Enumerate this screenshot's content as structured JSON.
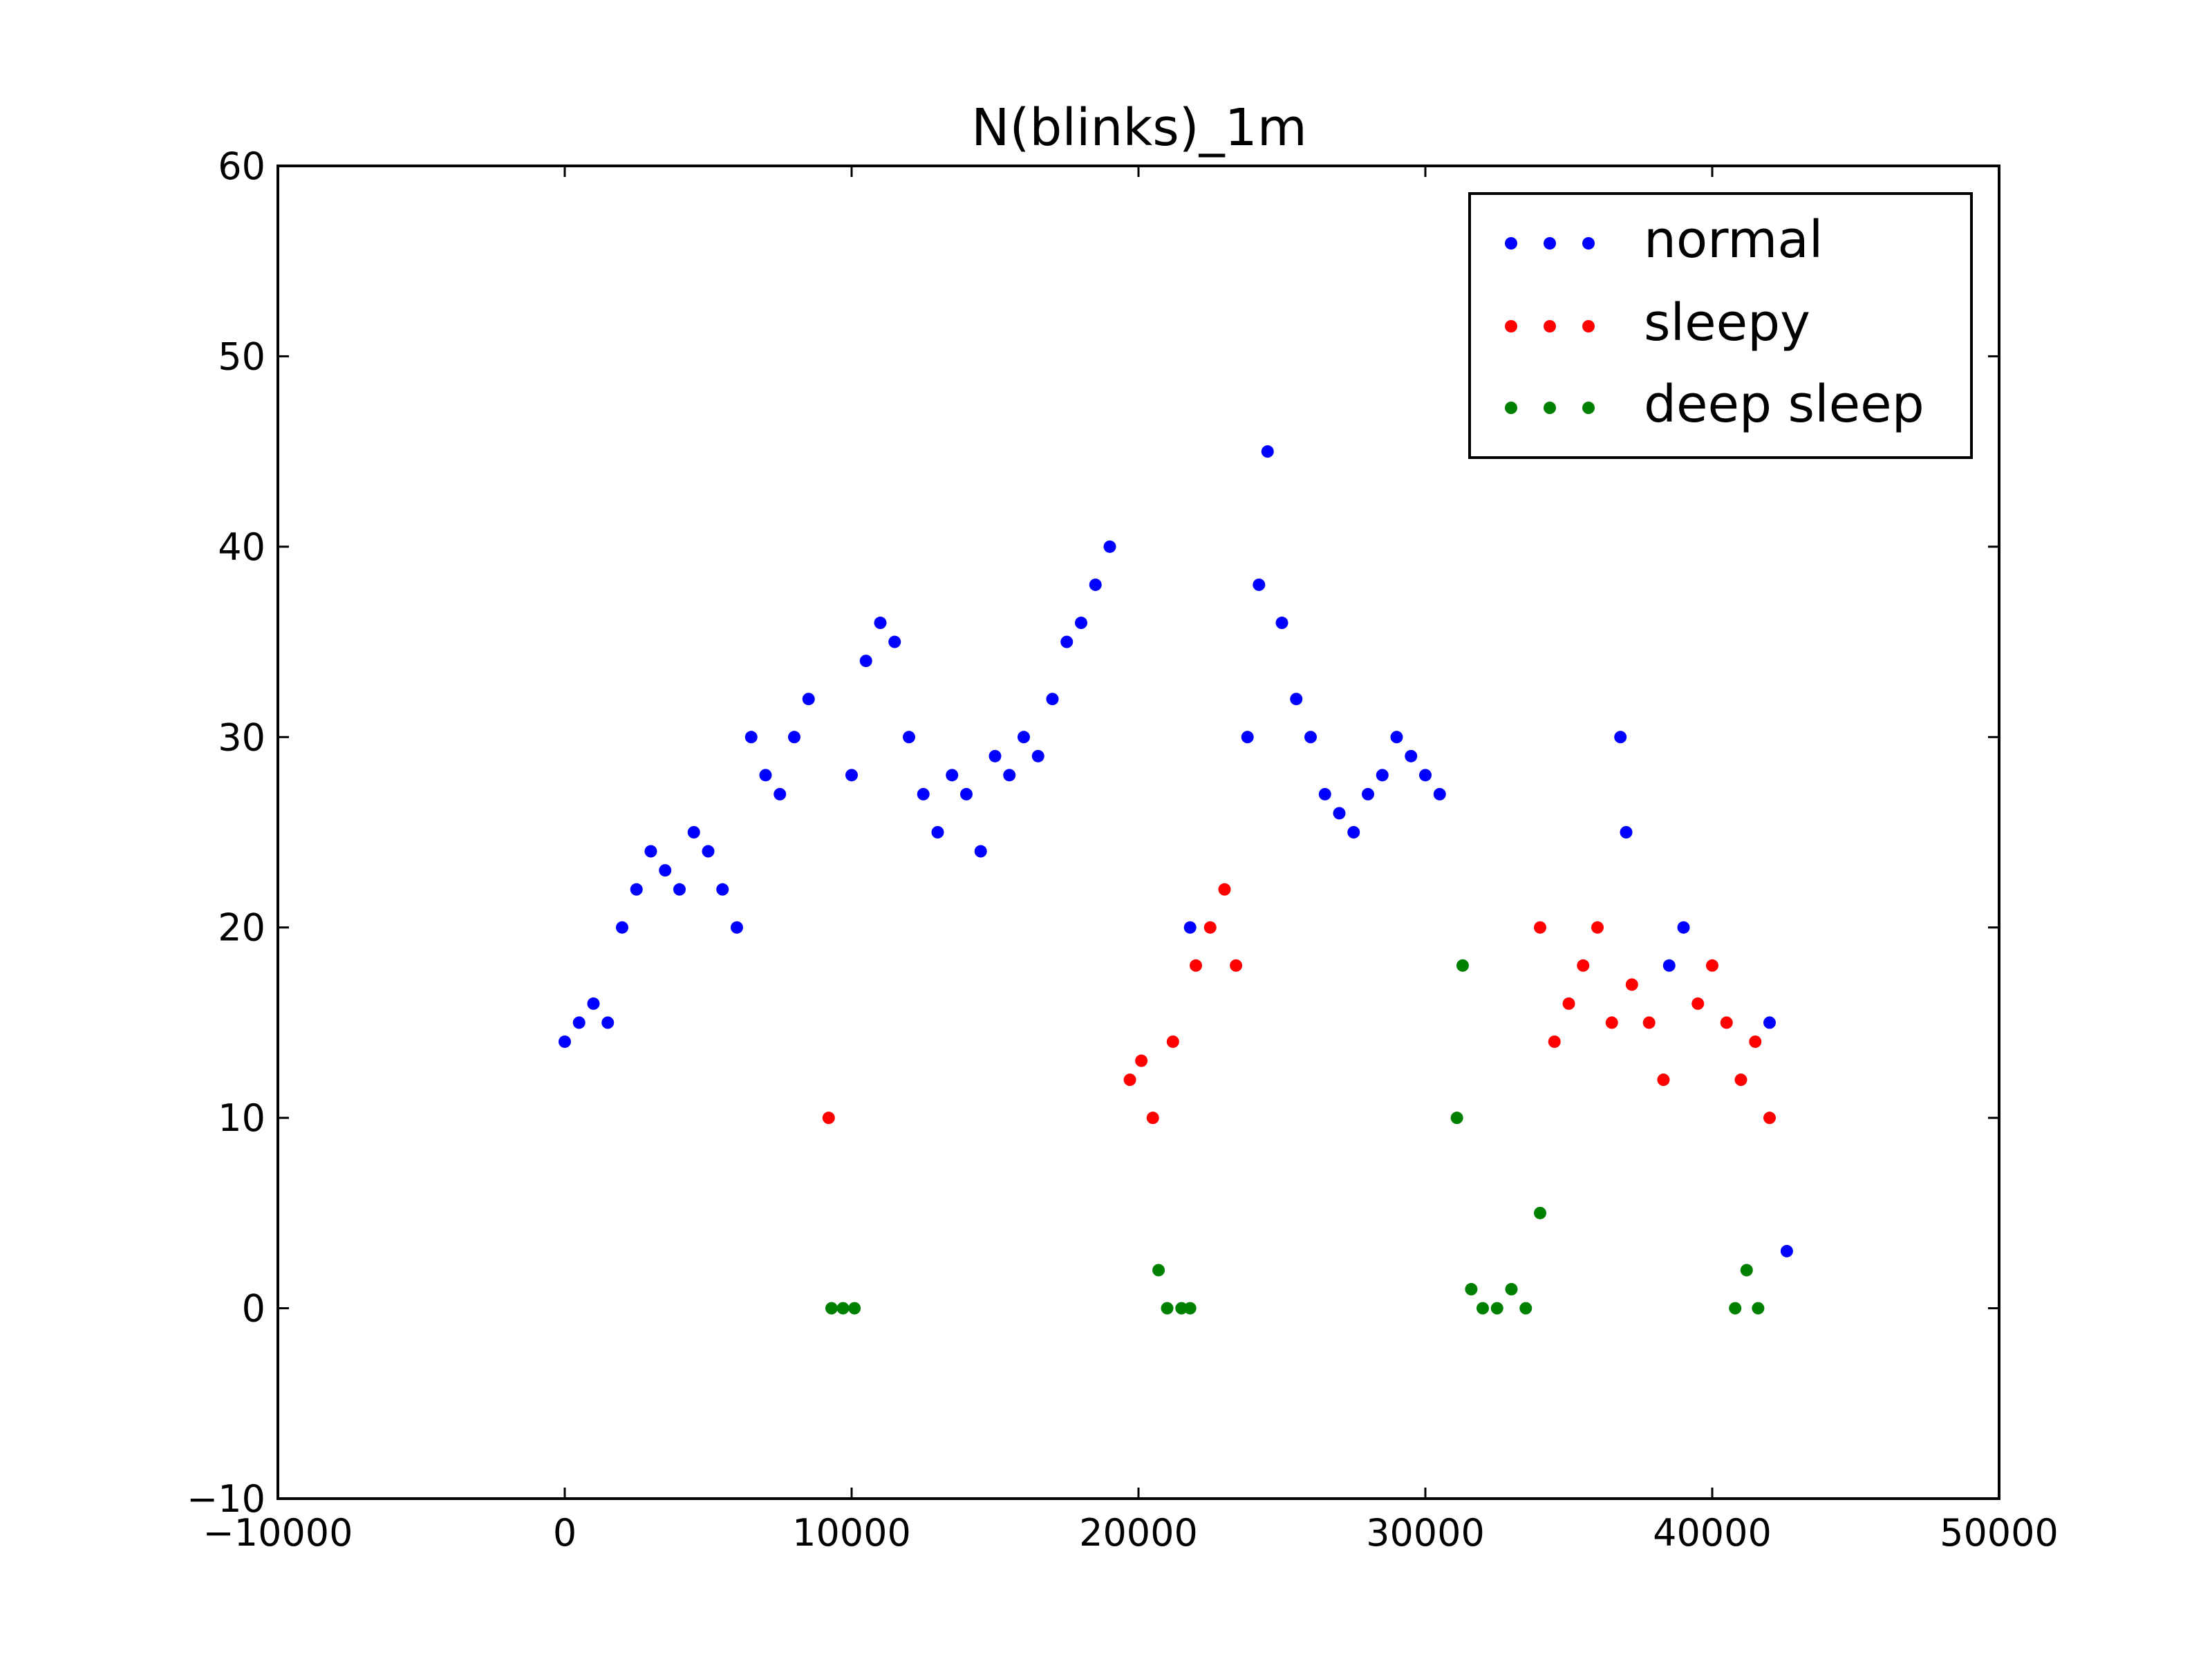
{
  "chart_data": {
    "type": "scatter",
    "title": "N(blinks)_1m",
    "xlabel": "",
    "ylabel": "",
    "xlim": [
      -10000,
      50000
    ],
    "ylim": [
      -10,
      60
    ],
    "xticks": [
      -10000,
      0,
      10000,
      20000,
      30000,
      40000,
      50000
    ],
    "xtick_labels": [
      "−10000",
      "0",
      "10000",
      "20000",
      "30000",
      "40000",
      "50000"
    ],
    "yticks": [
      -10,
      0,
      10,
      20,
      30,
      40,
      50,
      60
    ],
    "ytick_labels": [
      "−10",
      "0",
      "10",
      "20",
      "30",
      "40",
      "50",
      "60"
    ],
    "grid": false,
    "legend_position": "top-right",
    "series": [
      {
        "name": "normal",
        "color": "#0000ff",
        "points": [
          [
            0,
            14
          ],
          [
            500,
            15
          ],
          [
            1000,
            16
          ],
          [
            1500,
            15
          ],
          [
            2000,
            20
          ],
          [
            2500,
            22
          ],
          [
            3000,
            24
          ],
          [
            3500,
            23
          ],
          [
            4000,
            22
          ],
          [
            4500,
            25
          ],
          [
            5000,
            24
          ],
          [
            5500,
            22
          ],
          [
            6000,
            20
          ],
          [
            6500,
            30
          ],
          [
            7000,
            28
          ],
          [
            7500,
            27
          ],
          [
            8000,
            30
          ],
          [
            8500,
            32
          ],
          [
            10000,
            28
          ],
          [
            10500,
            34
          ],
          [
            11000,
            36
          ],
          [
            11500,
            35
          ],
          [
            12000,
            30
          ],
          [
            12500,
            27
          ],
          [
            13000,
            25
          ],
          [
            13500,
            28
          ],
          [
            14000,
            27
          ],
          [
            14500,
            24
          ],
          [
            15000,
            29
          ],
          [
            15500,
            28
          ],
          [
            16000,
            30
          ],
          [
            16500,
            29
          ],
          [
            17000,
            32
          ],
          [
            17500,
            35
          ],
          [
            18000,
            36
          ],
          [
            18500,
            38
          ],
          [
            19000,
            40
          ],
          [
            21800,
            20
          ],
          [
            23800,
            30
          ],
          [
            24200,
            38
          ],
          [
            24500,
            45
          ],
          [
            25000,
            36
          ],
          [
            25500,
            32
          ],
          [
            26000,
            30
          ],
          [
            26500,
            27
          ],
          [
            27000,
            26
          ],
          [
            27500,
            25
          ],
          [
            28000,
            27
          ],
          [
            28500,
            28
          ],
          [
            29000,
            30
          ],
          [
            29500,
            29
          ],
          [
            30000,
            28
          ],
          [
            30500,
            27
          ],
          [
            36800,
            30
          ],
          [
            37000,
            25
          ],
          [
            38500,
            18
          ],
          [
            39000,
            20
          ],
          [
            42000,
            15
          ],
          [
            42600,
            3
          ]
        ]
      },
      {
        "name": "sleepy",
        "color": "#ff0000",
        "points": [
          [
            9200,
            10
          ],
          [
            19700,
            12
          ],
          [
            20100,
            13
          ],
          [
            20500,
            10
          ],
          [
            21200,
            14
          ],
          [
            22000,
            18
          ],
          [
            22500,
            20
          ],
          [
            23000,
            22
          ],
          [
            23400,
            18
          ],
          [
            34000,
            20
          ],
          [
            34500,
            14
          ],
          [
            35000,
            16
          ],
          [
            35500,
            18
          ],
          [
            36000,
            20
          ],
          [
            36500,
            15
          ],
          [
            37200,
            17
          ],
          [
            37800,
            15
          ],
          [
            38300,
            12
          ],
          [
            39500,
            16
          ],
          [
            40000,
            18
          ],
          [
            40500,
            15
          ],
          [
            41000,
            12
          ],
          [
            41500,
            14
          ],
          [
            42000,
            10
          ]
        ]
      },
      {
        "name": "deep sleep",
        "color": "#008000",
        "points": [
          [
            9300,
            0
          ],
          [
            9700,
            0
          ],
          [
            10100,
            0
          ],
          [
            20700,
            2
          ],
          [
            21000,
            0
          ],
          [
            21500,
            0
          ],
          [
            21800,
            0
          ],
          [
            31100,
            10
          ],
          [
            31300,
            18
          ],
          [
            31600,
            1
          ],
          [
            32000,
            0
          ],
          [
            32500,
            0
          ],
          [
            33000,
            1
          ],
          [
            33500,
            0
          ],
          [
            34000,
            5
          ],
          [
            40800,
            0
          ],
          [
            41200,
            2
          ],
          [
            41600,
            0
          ]
        ]
      }
    ]
  }
}
